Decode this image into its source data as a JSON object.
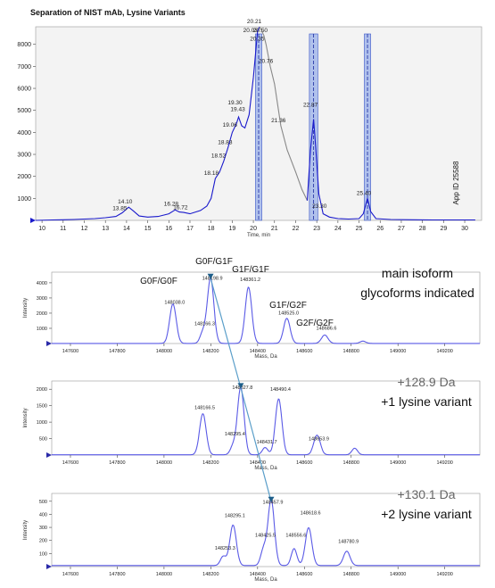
{
  "chart_data": [
    {
      "type": "line",
      "title": "Separation of NIST mAb, Lysine Variants",
      "xlabel": "Time, min",
      "ylabel": "",
      "xlim": [
        9.7,
        30.8
      ],
      "ylim": [
        0,
        8800
      ],
      "x_ticks": [
        "10",
        "11",
        "12",
        "13",
        "14",
        "15",
        "16",
        "17",
        "18",
        "19",
        "20",
        "21",
        "22",
        "23",
        "24",
        "25",
        "26",
        "27",
        "28",
        "29",
        "30"
      ],
      "y_ticks": [
        "1000",
        "2000",
        "3000",
        "4000",
        "5000",
        "6000",
        "7000",
        "8000"
      ],
      "side_label": "App ID 25588",
      "peak_labels": [
        {
          "text": "13.85",
          "x": 13.85,
          "y": 300
        },
        {
          "text": "14.10",
          "x": 14.1,
          "y": 600
        },
        {
          "text": "16.28",
          "x": 16.28,
          "y": 500
        },
        {
          "text": "16.72",
          "x": 16.72,
          "y": 350
        },
        {
          "text": "18.18",
          "x": 18.18,
          "y": 1900
        },
        {
          "text": "18.52",
          "x": 18.52,
          "y": 2700
        },
        {
          "text": "18.83",
          "x": 18.83,
          "y": 3300
        },
        {
          "text": "19.06",
          "x": 19.06,
          "y": 4100
        },
        {
          "text": "19.43",
          "x": 19.43,
          "y": 4800
        },
        {
          "text": "19.30",
          "x": 19.3,
          "y": 5100
        },
        {
          "text": "20.21",
          "x": 20.21,
          "y": 8800
        },
        {
          "text": "20.50",
          "x": 20.5,
          "y": 8400
        },
        {
          "text": "20.03",
          "x": 20.03,
          "y": 8400
        },
        {
          "text": "20.35",
          "x": 20.35,
          "y": 8000
        },
        {
          "text": "20.76",
          "x": 20.76,
          "y": 7000
        },
        {
          "text": "21.36",
          "x": 21.36,
          "y": 4300
        },
        {
          "text": "22.87",
          "x": 22.87,
          "y": 5000
        },
        {
          "text": "23.30",
          "x": 23.3,
          "y": 400
        },
        {
          "text": "25.40",
          "x": 25.4,
          "y": 1000
        }
      ],
      "highlight_bands": [
        [
          20.1,
          20.4
        ],
        [
          22.65,
          23.05
        ],
        [
          25.25,
          25.55
        ]
      ],
      "series": [
        {
          "color": "#1a1acc",
          "x": [
            9.7,
            10.5,
            11,
            11.5,
            12,
            12.5,
            13,
            13.5,
            13.8,
            14.0,
            14.1,
            14.3,
            14.6,
            15.0,
            15.5,
            16.0,
            16.3,
            16.5,
            16.7,
            17.0,
            17.5,
            17.8,
            18.0,
            18.2,
            18.4,
            18.6,
            18.8,
            19.0,
            19.2,
            19.3,
            19.45,
            19.6,
            19.8,
            20.0,
            20.2,
            20.3
          ],
          "y": [
            0,
            20,
            30,
            40,
            60,
            80,
            120,
            180,
            350,
            520,
            600,
            450,
            200,
            150,
            180,
            300,
            480,
            380,
            360,
            300,
            450,
            650,
            1000,
            1900,
            2200,
            2700,
            3300,
            4000,
            4400,
            4700,
            4300,
            4200,
            4800,
            6500,
            8600,
            8800
          ]
        },
        {
          "color": "#888888",
          "x": [
            20.3,
            20.5,
            20.6,
            20.8,
            21.0,
            21.3,
            21.6,
            22.0,
            22.3,
            22.55
          ],
          "y": [
            8800,
            8400,
            8000,
            7000,
            6200,
            4300,
            3200,
            2200,
            1400,
            900
          ]
        },
        {
          "color": "#1a1acc",
          "x": [
            22.55,
            22.7,
            22.85,
            22.95,
            23.1,
            23.3,
            23.6,
            24.0,
            24.5,
            25.0,
            25.2,
            25.4,
            25.55,
            25.8,
            26.5,
            27.5,
            28.5,
            29.5,
            30.5
          ],
          "y": [
            900,
            3200,
            4600,
            3300,
            1200,
            300,
            150,
            80,
            60,
            80,
            300,
            1000,
            400,
            80,
            40,
            30,
            20,
            20,
            20
          ]
        }
      ]
    },
    {
      "type": "line",
      "title": "",
      "xlabel": "Mass, Da",
      "ylabel": "Intensity",
      "xlim": [
        147520,
        149350
      ],
      "ylim": [
        0,
        4700
      ],
      "x_ticks": [
        "147600",
        "147800",
        "148000",
        "148200",
        "148400",
        "148600",
        "148800",
        "149000",
        "149200"
      ],
      "y_ticks": [
        "1000",
        "2000",
        "3000",
        "4000"
      ],
      "glycoform_labels": [
        "G0F/G0F",
        "G0F/G1F",
        "G1F/G1F",
        "G1F/G2F",
        "G2F/G2F"
      ],
      "annotation_lines": [
        "main isoform",
        "glycoforms indicated"
      ],
      "peak_labels": [
        {
          "text": "148038.0",
          "x": 148038,
          "y": 2600
        },
        {
          "text": "148166.3",
          "x": 148166,
          "y": 1200
        },
        {
          "text": "148198.9",
          "x": 148198.9,
          "y": 4200
        },
        {
          "text": "148361.2",
          "x": 148361.2,
          "y": 4100
        },
        {
          "text": "148525.0",
          "x": 148525,
          "y": 1900
        },
        {
          "text": "148686.6",
          "x": 148686.6,
          "y": 900
        }
      ],
      "peaks": [
        {
          "x": 148038,
          "h": 2600,
          "w": 14
        },
        {
          "x": 148166,
          "h": 700,
          "w": 12
        },
        {
          "x": 148199,
          "h": 4300,
          "w": 14
        },
        {
          "x": 148361,
          "h": 3700,
          "w": 14
        },
        {
          "x": 148525,
          "h": 1650,
          "w": 14
        },
        {
          "x": 148687,
          "h": 550,
          "w": 14
        },
        {
          "x": 148850,
          "h": 150,
          "w": 12
        }
      ]
    },
    {
      "type": "line",
      "title": "",
      "xlabel": "Mass, Da",
      "ylabel": "Intensity",
      "xlim": [
        147520,
        149350
      ],
      "ylim": [
        0,
        2250
      ],
      "x_ticks": [
        "147600",
        "147800",
        "148000",
        "148200",
        "148400",
        "148600",
        "148800",
        "149000",
        "149200"
      ],
      "y_ticks": [
        "500",
        "1000",
        "1500",
        "2000"
      ],
      "annotation_lines": [
        "+128.9 Da",
        "+1 lysine variant"
      ],
      "peak_labels": [
        {
          "text": "148166.5",
          "x": 148166.5,
          "y": 1400
        },
        {
          "text": "148295.4",
          "x": 148295.4,
          "y": 600
        },
        {
          "text": "148327.8",
          "x": 148327.8,
          "y": 2000
        },
        {
          "text": "148431.7",
          "x": 148431.7,
          "y": 350
        },
        {
          "text": "148490.4",
          "x": 148490.4,
          "y": 1950
        },
        {
          "text": "148653.9",
          "x": 148653.9,
          "y": 450
        }
      ],
      "peaks": [
        {
          "x": 148166,
          "h": 1250,
          "w": 14
        },
        {
          "x": 148295,
          "h": 250,
          "w": 12
        },
        {
          "x": 148328,
          "h": 2050,
          "w": 14
        },
        {
          "x": 148432,
          "h": 220,
          "w": 12
        },
        {
          "x": 148490,
          "h": 1700,
          "w": 14
        },
        {
          "x": 148654,
          "h": 600,
          "w": 14
        },
        {
          "x": 148815,
          "h": 200,
          "w": 12
        }
      ]
    },
    {
      "type": "line",
      "title": "",
      "xlabel": "Mass, Da",
      "ylabel": "Intensity",
      "xlim": [
        147520,
        149350
      ],
      "ylim": [
        0,
        560
      ],
      "x_ticks": [
        "147600",
        "147800",
        "148000",
        "148200",
        "148400",
        "148600",
        "148800",
        "149000",
        "149200"
      ],
      "y_ticks": [
        "100",
        "200",
        "300",
        "400",
        "500"
      ],
      "annotation_lines": [
        "+130.1 Da",
        "+2 lysine variant"
      ],
      "peak_labels": [
        {
          "text": "148253.3",
          "x": 148253.3,
          "y": 130
        },
        {
          "text": "148295.1",
          "x": 148295.1,
          "y": 380
        },
        {
          "text": "148425.5",
          "x": 148425.5,
          "y": 230
        },
        {
          "text": "148457.9",
          "x": 148457.9,
          "y": 480
        },
        {
          "text": "148556.6",
          "x": 148556.6,
          "y": 230
        },
        {
          "text": "148618.6",
          "x": 148618.6,
          "y": 400
        },
        {
          "text": "148780.9",
          "x": 148780.9,
          "y": 180
        }
      ],
      "peaks": [
        {
          "x": 148253,
          "h": 70,
          "w": 12
        },
        {
          "x": 148295,
          "h": 310,
          "w": 14
        },
        {
          "x": 148425,
          "h": 120,
          "w": 12
        },
        {
          "x": 148458,
          "h": 500,
          "w": 14
        },
        {
          "x": 148556,
          "h": 130,
          "w": 12
        },
        {
          "x": 148618,
          "h": 290,
          "w": 14
        },
        {
          "x": 148781,
          "h": 110,
          "w": 14
        }
      ]
    }
  ],
  "connector": {
    "color": "#5a9ec9",
    "points": [
      [
        148199,
        4300
      ],
      [
        148328,
        2050
      ],
      [
        148458,
        500
      ]
    ]
  }
}
